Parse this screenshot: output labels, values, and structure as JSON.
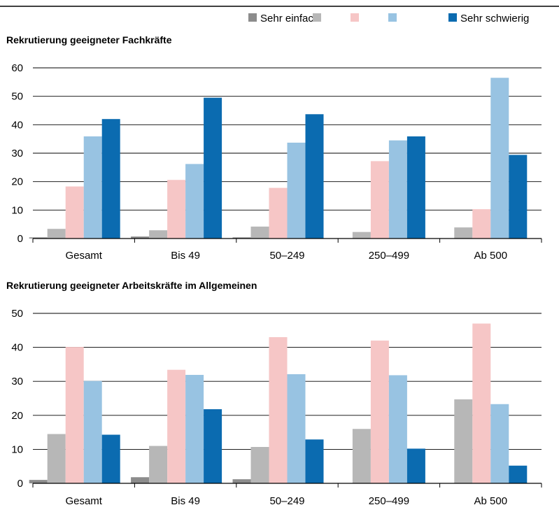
{
  "legend": {
    "items": [
      {
        "label": "Sehr einfach",
        "color": "#8c8c8c"
      },
      {
        "label": "",
        "color": "#b7b7b7"
      },
      {
        "label": "",
        "color": "#f6c6c6"
      },
      {
        "label": "",
        "color": "#98c3e2"
      },
      {
        "label": "Sehr schwierig",
        "color": "#0b6bb0"
      }
    ]
  },
  "chart_data": [
    {
      "type": "bar",
      "title": "Rekrutierung geeigneter Fachkräfte",
      "categories": [
        "Gesamt",
        "Bis 49",
        "50–249",
        "250–499",
        "Ab 500"
      ],
      "ylim": [
        0,
        60
      ],
      "yticks": [
        0,
        10,
        20,
        30,
        40,
        50,
        60
      ],
      "grid": true,
      "series": [
        {
          "name": "Sehr einfach",
          "values": [
            0.4,
            0.7,
            0.4,
            0,
            0
          ]
        },
        {
          "name": "",
          "values": [
            3.4,
            2.9,
            4.2,
            2.3,
            3.9
          ]
        },
        {
          "name": "",
          "values": [
            18.3,
            20.6,
            17.8,
            27.2,
            10.3
          ]
        },
        {
          "name": "",
          "values": [
            35.9,
            26.2,
            33.7,
            34.5,
            56.5
          ]
        },
        {
          "name": "Sehr schwierig",
          "values": [
            42.0,
            49.5,
            43.7,
            35.9,
            29.4
          ]
        }
      ]
    },
    {
      "type": "bar",
      "title": "Rekrutierung geeigneter Arbeitskräfte im Allgemeinen",
      "categories": [
        "Gesamt",
        "Bis 49",
        "50–249",
        "250–499",
        "Ab 500"
      ],
      "ylim": [
        0,
        50
      ],
      "yticks": [
        0,
        10,
        20,
        30,
        40,
        50
      ],
      "grid": true,
      "series": [
        {
          "name": "Sehr einfach",
          "values": [
            1.0,
            1.8,
            1.2,
            0,
            0
          ]
        },
        {
          "name": "",
          "values": [
            14.5,
            11.0,
            10.7,
            16.0,
            24.7
          ]
        },
        {
          "name": "",
          "values": [
            40.1,
            33.4,
            43.0,
            42.0,
            47.0
          ]
        },
        {
          "name": "",
          "values": [
            30.1,
            31.9,
            32.1,
            31.8,
            23.3
          ]
        },
        {
          "name": "Sehr schwierig",
          "values": [
            14.3,
            21.8,
            12.9,
            10.2,
            5.2
          ]
        }
      ]
    }
  ]
}
